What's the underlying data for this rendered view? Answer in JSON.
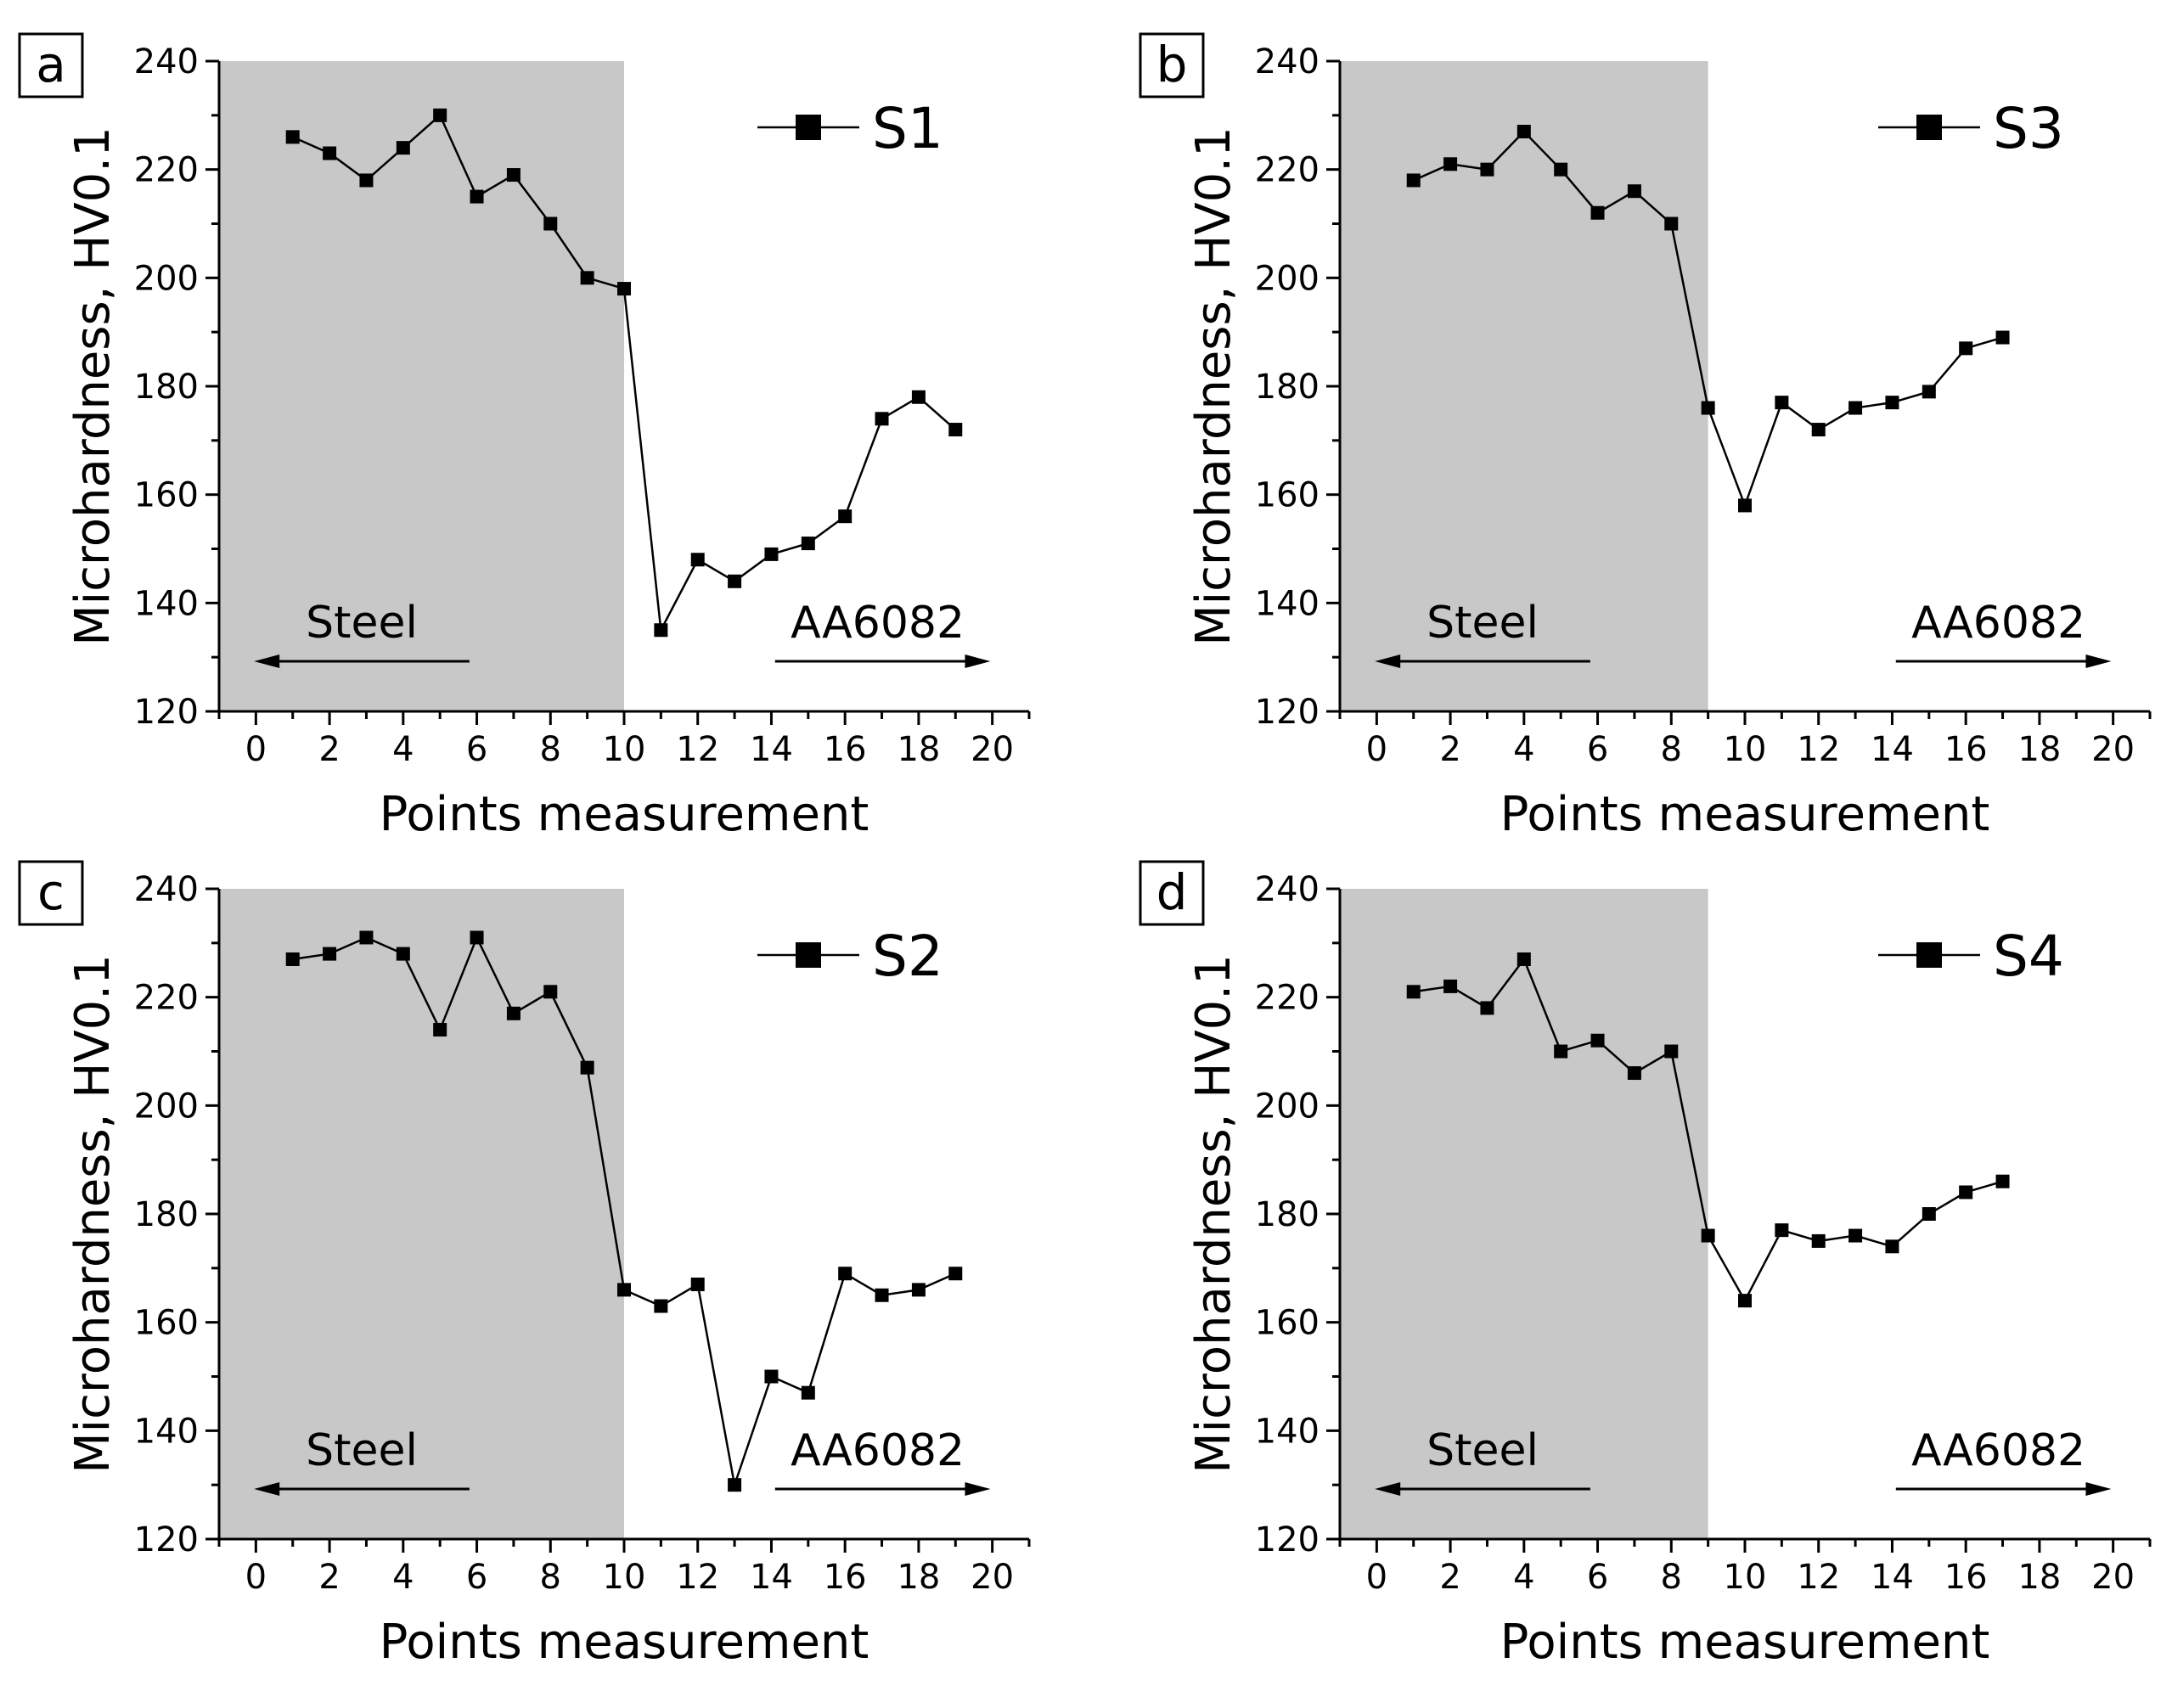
{
  "chart_data": [
    {
      "type": "line",
      "panel": "a",
      "xlabel": "Points measurement",
      "ylabel": "Microhardness, HV0.1",
      "xlim": [
        -1,
        21
      ],
      "ylim": [
        120,
        240
      ],
      "xticks": [
        "0",
        "2",
        "4",
        "6",
        "8",
        "10",
        "12",
        "14",
        "16",
        "18",
        "20"
      ],
      "yticks": [
        "120",
        "140",
        "160",
        "180",
        "200",
        "220",
        "240"
      ],
      "shaded_region_x": [
        -1,
        10
      ],
      "left_label": "Steel",
      "right_label": "AA6082",
      "legend": "S1",
      "series": [
        {
          "name": "S1",
          "x": [
            1,
            2,
            3,
            4,
            5,
            6,
            7,
            8,
            9,
            10,
            11,
            12,
            13,
            14,
            15,
            16,
            17,
            18,
            19
          ],
          "values": [
            226,
            223,
            218,
            224,
            230,
            215,
            219,
            210,
            200,
            198,
            135,
            148,
            144,
            149,
            151,
            156,
            174,
            178,
            172
          ]
        }
      ]
    },
    {
      "type": "line",
      "panel": "b",
      "xlabel": "Points measurement",
      "ylabel": "Microhardness, HV0.1",
      "xlim": [
        -1,
        21
      ],
      "ylim": [
        120,
        240
      ],
      "xticks": [
        "0",
        "2",
        "4",
        "6",
        "8",
        "10",
        "12",
        "14",
        "16",
        "18",
        "20"
      ],
      "yticks": [
        "120",
        "140",
        "160",
        "180",
        "200",
        "220",
        "240"
      ],
      "shaded_region_x": [
        -1,
        9
      ],
      "left_label": "Steel",
      "right_label": "AA6082",
      "legend": "S3",
      "series": [
        {
          "name": "S3",
          "x": [
            1,
            2,
            3,
            4,
            5,
            6,
            7,
            8,
            9,
            10,
            11,
            12,
            13,
            14,
            15,
            16,
            17
          ],
          "values": [
            218,
            221,
            220,
            227,
            220,
            212,
            216,
            210,
            176,
            158,
            177,
            172,
            176,
            177,
            179,
            187,
            189
          ]
        }
      ]
    },
    {
      "type": "line",
      "panel": "c",
      "xlabel": "Points measurement",
      "ylabel": "Microhardness, HV0.1",
      "xlim": [
        -1,
        21
      ],
      "ylim": [
        120,
        240
      ],
      "xticks": [
        "0",
        "2",
        "4",
        "6",
        "8",
        "10",
        "12",
        "14",
        "16",
        "18",
        "20"
      ],
      "yticks": [
        "120",
        "140",
        "160",
        "180",
        "200",
        "220",
        "240"
      ],
      "shaded_region_x": [
        -1,
        10
      ],
      "left_label": "Steel",
      "right_label": "AA6082",
      "legend": "S2",
      "series": [
        {
          "name": "S2",
          "x": [
            1,
            2,
            3,
            4,
            5,
            6,
            7,
            8,
            9,
            10,
            11,
            12,
            13,
            14,
            15,
            16,
            17,
            18,
            19
          ],
          "values": [
            227,
            228,
            231,
            228,
            214,
            231,
            217,
            221,
            207,
            166,
            163,
            167,
            130,
            150,
            147,
            169,
            165,
            166,
            169
          ]
        }
      ]
    },
    {
      "type": "line",
      "panel": "d",
      "xlabel": "Points measurement",
      "ylabel": "Microhardness, HV0.1",
      "xlim": [
        -1,
        21
      ],
      "ylim": [
        120,
        240
      ],
      "xticks": [
        "0",
        "2",
        "4",
        "6",
        "8",
        "10",
        "12",
        "14",
        "16",
        "18",
        "20"
      ],
      "yticks": [
        "120",
        "140",
        "160",
        "180",
        "200",
        "220",
        "240"
      ],
      "shaded_region_x": [
        -1,
        9
      ],
      "left_label": "Steel",
      "right_label": "AA6082",
      "legend": "S4",
      "series": [
        {
          "name": "S4",
          "x": [
            1,
            2,
            3,
            4,
            5,
            6,
            7,
            8,
            9,
            10,
            11,
            12,
            13,
            14,
            15,
            16,
            17
          ],
          "values": [
            221,
            222,
            218,
            227,
            210,
            212,
            206,
            210,
            176,
            164,
            177,
            175,
            176,
            174,
            180,
            184,
            186
          ]
        }
      ]
    }
  ]
}
